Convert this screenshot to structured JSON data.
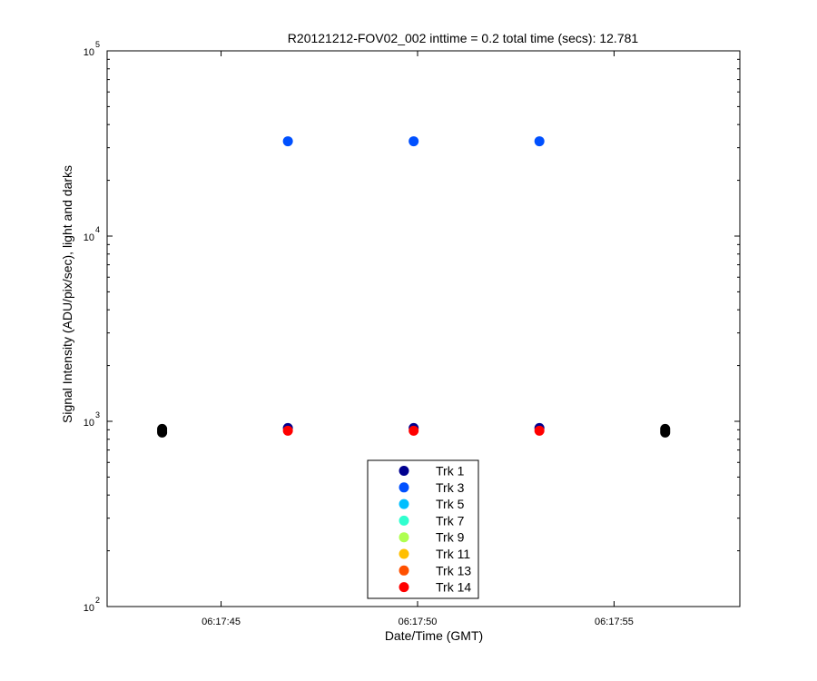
{
  "chart_data": {
    "type": "scatter",
    "title": "R20121212-FOV02_002 inttime = 0.2 total time (secs): 12.781",
    "xlabel": "Date/Time (GMT)",
    "ylabel": "Signal Intensity (ADU/pix/sec), light and darks",
    "xlim": [
      "06:17:42.1",
      "06:17:58.2"
    ],
    "ylim": [
      100,
      100000
    ],
    "yscale": "log",
    "grid": false,
    "legend_position": "bottom-center",
    "x_ticks": [
      "06:17:45",
      "06:17:50",
      "06:17:55"
    ],
    "y_ticks": [
      {
        "base": "10",
        "exp": "2"
      },
      {
        "base": "10",
        "exp": "3"
      },
      {
        "base": "10",
        "exp": "4"
      },
      {
        "base": "10",
        "exp": "5"
      }
    ],
    "series": [
      {
        "name": "Trk 1",
        "color": "#00008f",
        "points": [
          {
            "x": "06:17:46.7",
            "y": 920
          },
          {
            "x": "06:17:49.9",
            "y": 920
          },
          {
            "x": "06:17:53.1",
            "y": 920
          }
        ]
      },
      {
        "name": "Trk 3",
        "color": "#0050ff",
        "points": [
          {
            "x": "06:17:46.7",
            "y": 32500
          },
          {
            "x": "06:17:49.9",
            "y": 32500
          },
          {
            "x": "06:17:53.1",
            "y": 32500
          }
        ]
      },
      {
        "name": "Trk 5",
        "color": "#00bfff",
        "points": []
      },
      {
        "name": "Trk 7",
        "color": "#30ffcf",
        "points": []
      },
      {
        "name": "Trk 9",
        "color": "#afff50",
        "points": []
      },
      {
        "name": "Trk 11",
        "color": "#ffbf00",
        "points": []
      },
      {
        "name": "Trk 13",
        "color": "#ff5000",
        "points": []
      },
      {
        "name": "Trk 14",
        "color": "#ff0000",
        "points": [
          {
            "x": "06:17:46.7",
            "y": 890
          },
          {
            "x": "06:17:49.9",
            "y": 890
          },
          {
            "x": "06:17:53.1",
            "y": 890
          }
        ]
      }
    ],
    "darks": {
      "color": "#000000",
      "points": [
        {
          "x": "06:17:43.5",
          "y": 870
        },
        {
          "x": "06:17:43.5",
          "y": 890
        },
        {
          "x": "06:17:43.5",
          "y": 910
        },
        {
          "x": "06:17:56.3",
          "y": 870
        },
        {
          "x": "06:17:56.3",
          "y": 890
        },
        {
          "x": "06:17:56.3",
          "y": 910
        }
      ]
    }
  }
}
